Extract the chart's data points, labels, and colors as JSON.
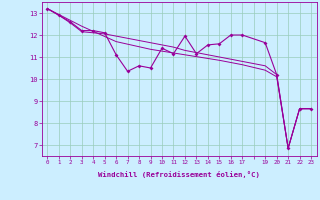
{
  "xlabel": "Windchill (Refroidissement éolien,°C)",
  "bg_color": "#cceeff",
  "line_color": "#990099",
  "grid_color": "#99ccbb",
  "xlim": [
    -0.5,
    23.5
  ],
  "ylim": [
    6.5,
    13.5
  ],
  "yticks": [
    7,
    8,
    9,
    10,
    11,
    12,
    13
  ],
  "series1": [
    [
      0,
      13.2
    ],
    [
      1,
      12.9
    ],
    [
      2,
      12.6
    ],
    [
      3,
      12.2
    ],
    [
      4,
      12.2
    ],
    [
      5,
      12.1
    ],
    [
      6,
      11.1
    ],
    [
      7,
      10.35
    ],
    [
      8,
      10.6
    ],
    [
      9,
      10.5
    ],
    [
      10,
      11.4
    ],
    [
      11,
      11.15
    ],
    [
      12,
      11.95
    ],
    [
      13,
      11.15
    ],
    [
      14,
      11.55
    ],
    [
      15,
      11.6
    ],
    [
      16,
      12.0
    ],
    [
      17,
      12.0
    ],
    [
      19,
      11.65
    ],
    [
      20,
      10.2
    ],
    [
      21,
      6.85
    ],
    [
      22,
      8.65
    ],
    [
      23,
      8.65
    ]
  ],
  "series2": [
    [
      0,
      13.2
    ],
    [
      1,
      12.9
    ],
    [
      2,
      12.55
    ],
    [
      3,
      12.15
    ],
    [
      4,
      12.1
    ],
    [
      5,
      12.05
    ],
    [
      6,
      11.95
    ],
    [
      7,
      11.85
    ],
    [
      8,
      11.75
    ],
    [
      9,
      11.65
    ],
    [
      10,
      11.55
    ],
    [
      11,
      11.45
    ],
    [
      12,
      11.3
    ],
    [
      13,
      11.2
    ],
    [
      14,
      11.1
    ],
    [
      15,
      11.0
    ],
    [
      16,
      10.9
    ],
    [
      17,
      10.8
    ],
    [
      19,
      10.6
    ],
    [
      20,
      10.2
    ],
    [
      21,
      6.85
    ],
    [
      22,
      8.65
    ],
    [
      23,
      8.65
    ]
  ],
  "series3": [
    [
      0,
      13.2
    ],
    [
      3,
      12.4
    ],
    [
      6,
      11.7
    ],
    [
      9,
      11.35
    ],
    [
      12,
      11.1
    ],
    [
      15,
      10.85
    ],
    [
      17,
      10.65
    ],
    [
      19,
      10.4
    ],
    [
      20,
      10.1
    ],
    [
      21,
      6.85
    ],
    [
      22,
      8.65
    ],
    [
      23,
      8.65
    ]
  ]
}
